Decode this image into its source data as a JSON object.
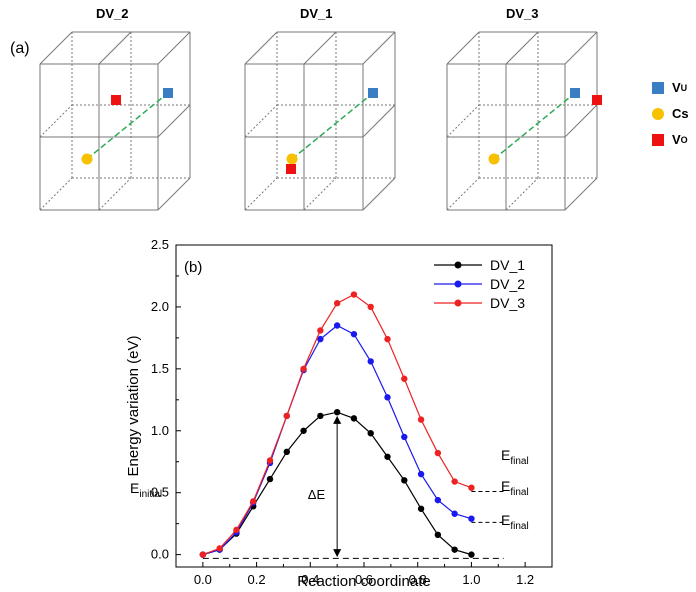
{
  "panel_a": {
    "label": "(a)",
    "structures": [
      {
        "title": "DV_2"
      },
      {
        "title": "DV_1"
      },
      {
        "title": "DV_3"
      }
    ],
    "legend": [
      {
        "symbol": "V",
        "sub": "U",
        "color": "#3a7dc3",
        "shape": "square-icon"
      },
      {
        "symbol": "Cs",
        "sub": "",
        "color": "#f7c000",
        "shape": "circle-icon"
      },
      {
        "symbol": "V",
        "sub": "O",
        "color": "#ee1111",
        "shape": "square-icon"
      }
    ]
  },
  "chart_data": {
    "type": "line",
    "panel_label": "(b)",
    "xlabel": "Reaction coordinate",
    "ylabel": "Energy variation (eV)",
    "xlim": [
      -0.1,
      1.3
    ],
    "ylim": [
      -0.1,
      2.5
    ],
    "xticks": [
      "0.0",
      "0.2",
      "0.4",
      "0.6",
      "0.8",
      "1.0",
      "1.2"
    ],
    "yticks": [
      "0.0",
      "0.5",
      "1.0",
      "1.5",
      "2.0",
      "2.5"
    ],
    "legend_position": "top-right",
    "x": [
      0.0,
      0.0625,
      0.125,
      0.1875,
      0.25,
      0.3125,
      0.375,
      0.4375,
      0.5,
      0.5625,
      0.625,
      0.6875,
      0.75,
      0.8125,
      0.875,
      0.9375,
      1.0
    ],
    "series": [
      {
        "name": "DV_1",
        "color": "#000000",
        "values": [
          0.0,
          0.04,
          0.17,
          0.39,
          0.61,
          0.83,
          1.0,
          1.12,
          1.15,
          1.1,
          0.98,
          0.79,
          0.6,
          0.37,
          0.16,
          0.04,
          0.0
        ]
      },
      {
        "name": "DV_2",
        "color": "#1a1aee",
        "values": [
          0.0,
          0.04,
          0.18,
          0.42,
          0.74,
          1.12,
          1.49,
          1.74,
          1.85,
          1.78,
          1.56,
          1.27,
          0.95,
          0.65,
          0.44,
          0.33,
          0.29
        ]
      },
      {
        "name": "DV_3",
        "color": "#ee2222",
        "values": [
          0.0,
          0.05,
          0.2,
          0.43,
          0.76,
          1.12,
          1.5,
          1.81,
          2.03,
          2.1,
          2.0,
          1.74,
          1.42,
          1.09,
          0.82,
          0.59,
          0.54
        ]
      }
    ],
    "annotations": {
      "initial_label": "E",
      "initial_sub": "initial",
      "final_label": "E",
      "final_sub": "final",
      "final_levels": [
        0.0,
        0.29,
        0.54
      ],
      "delta_label": "ΔE"
    }
  }
}
